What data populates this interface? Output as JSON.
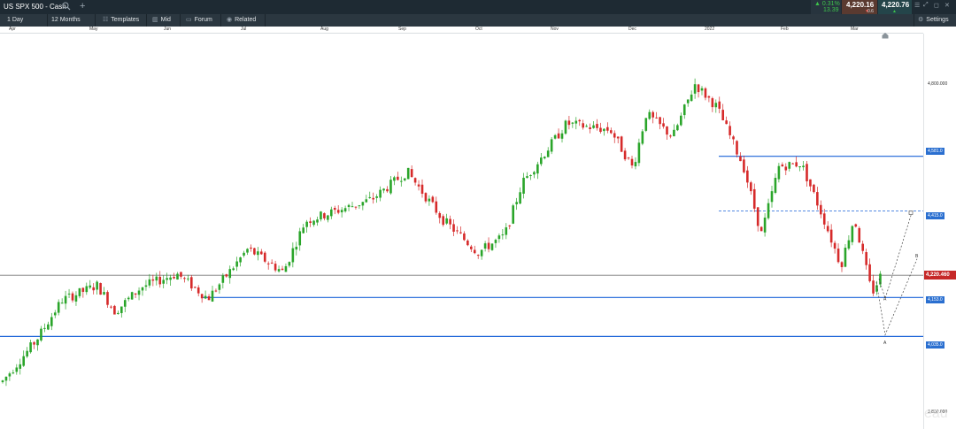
{
  "window": {
    "title": "US SPX 500 - Cash",
    "change_pct": "0.31%",
    "change_abs": "13.39",
    "bid": "4,220.16",
    "ask": "4,220.76",
    "spread": "0.6"
  },
  "toolbar": {
    "interval": "1 Day",
    "range": "12 Months",
    "templates": "Templates",
    "price_type": "Mid",
    "forum": "Forum",
    "related": "Related",
    "settings": "Settings"
  },
  "months": [
    "Apr",
    "May",
    "Jun",
    "Jul",
    "Aug",
    "Sep",
    "Oct",
    "Nov",
    "Dec",
    "2022",
    "Feb",
    "Mar"
  ],
  "price_axis": {
    "upper_label": "4,800.000",
    "lower_label": "3,800.000",
    "current_price": "4,220.460"
  },
  "chart_data": {
    "type": "candlestick",
    "y_range": [
      3800,
      4820
    ],
    "horizontal_lines": [
      {
        "value": 4581,
        "style": "solid",
        "color": "#1a63d8"
      },
      {
        "value": 4415,
        "style": "dashed",
        "color": "#1a63d8"
      },
      {
        "value": 4220.46,
        "style": "solid",
        "color": "#777777"
      },
      {
        "value": 4153,
        "style": "solid",
        "color": "#1a63d8"
      },
      {
        "value": 4035,
        "style": "solid",
        "color": "#1a63d8"
      }
    ],
    "pattern_labels": [
      "A",
      "B"
    ],
    "colors": {
      "up": "#2aa52a",
      "down": "#d62a2a"
    }
  },
  "watermark": "eau"
}
